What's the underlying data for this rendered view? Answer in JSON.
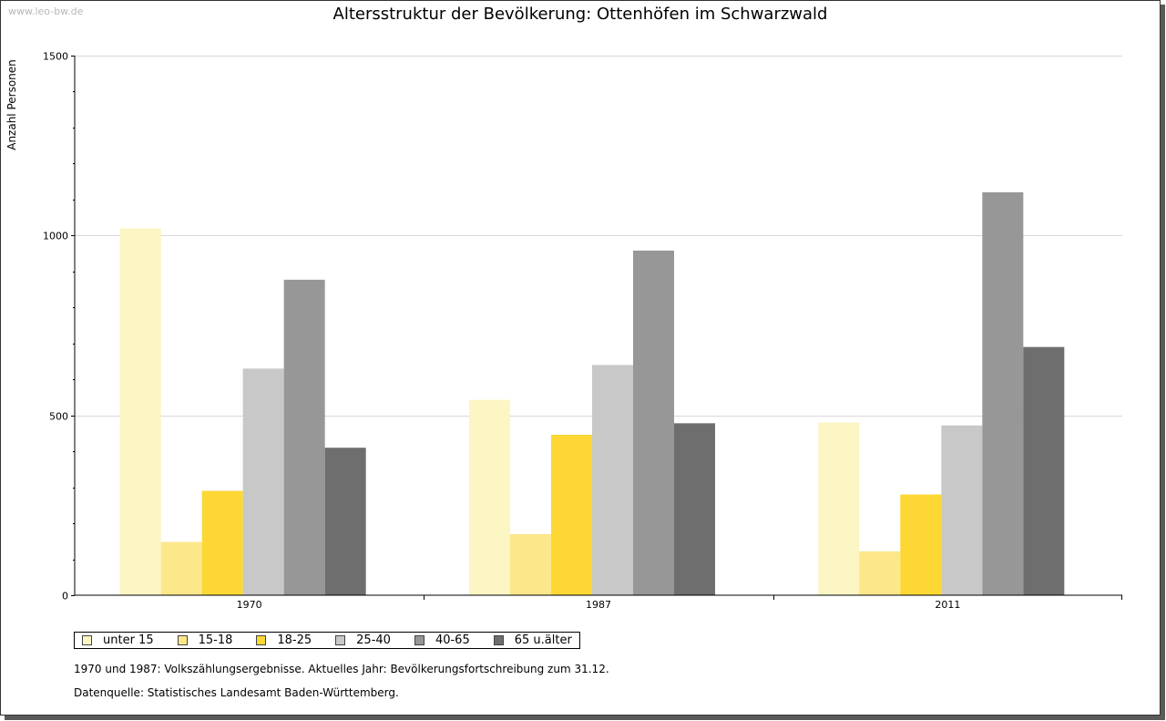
{
  "watermark": "www.leo-bw.de",
  "notes": {
    "census": "1970 und 1987: Volkszählungsergebnisse. Aktuelles Jahr: Bevölkerungsfortschreibung zum 31.12.",
    "source": "Datenquelle: Statistisches Landesamt Baden-Württemberg."
  },
  "chart_data": {
    "type": "bar",
    "title": "Altersstruktur der Bevölkerung: Ottenhöfen im Schwarzwald",
    "ylabel": "Anzahl Personen",
    "xlabel": "",
    "ylim": [
      0,
      1500
    ],
    "yticks": [
      "0",
      "500",
      "1000",
      "1500"
    ],
    "grid": true,
    "legend_position": "bottom-left",
    "categories": [
      "1970",
      "1987",
      "2011"
    ],
    "series": [
      {
        "name": "unter 15",
        "color": "#fcf5c4",
        "values": [
          1020,
          543,
          480
        ]
      },
      {
        "name": "15-18",
        "color": "#fce78a",
        "values": [
          148,
          170,
          122
        ]
      },
      {
        "name": "18-25",
        "color": "#fdd733",
        "values": [
          290,
          446,
          280
        ]
      },
      {
        "name": "25-40",
        "color": "#c8c8c8",
        "values": [
          630,
          640,
          472
        ]
      },
      {
        "name": "40-65",
        "color": "#979797",
        "values": [
          877,
          958,
          1120
        ]
      },
      {
        "name": "65 u.älter",
        "color": "#6e6e6e",
        "values": [
          410,
          478,
          690
        ]
      }
    ]
  }
}
